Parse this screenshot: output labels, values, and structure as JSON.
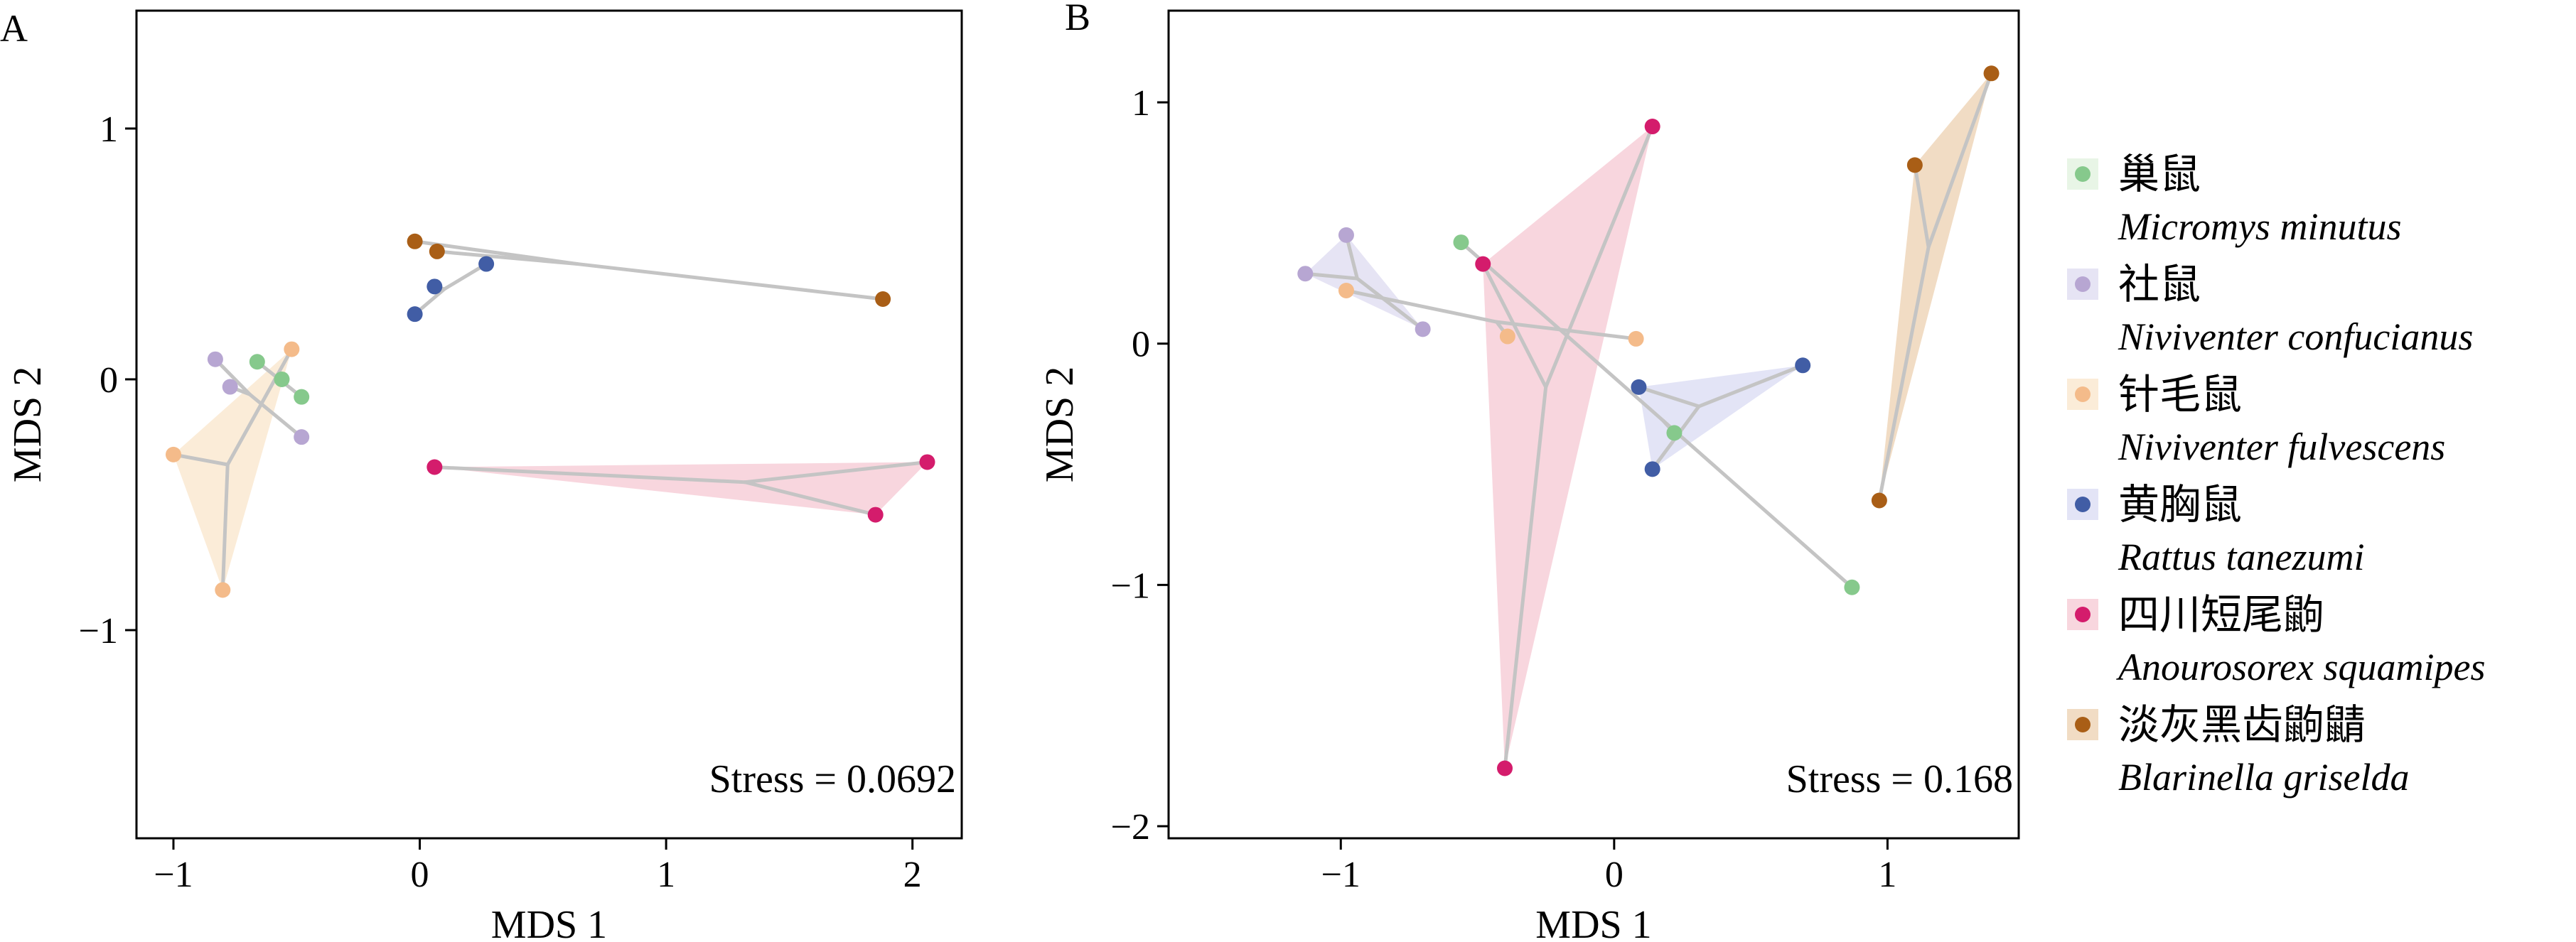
{
  "colors": {
    "species": [
      "#86c98c",
      "#b7a6d2",
      "#f4bb8a",
      "#415da5",
      "#d41c6c",
      "#a95e16"
    ],
    "fills": [
      "#e8f5e6",
      "#e6e4f4",
      "#fbecd8",
      "#e3e4f6",
      "#f8d6de",
      "#f1dcc4"
    ],
    "spoke": "#c4c4c4",
    "axis": "#000000"
  },
  "legend": {
    "items": [
      {
        "zh": "巢鼠",
        "latin": "Micromys minutus"
      },
      {
        "zh": "社鼠",
        "latin": "Niviventer confucianus"
      },
      {
        "zh": "针毛鼠",
        "latin": "Niviventer fulvescens"
      },
      {
        "zh": "黄胸鼠",
        "latin": "Rattus tanezumi"
      },
      {
        "zh": "四川短尾鼩",
        "latin": "Anourosorex squamipes"
      },
      {
        "zh": "淡灰黑齿鼩鼱",
        "latin": "Blarinella griselda"
      }
    ]
  },
  "chart_data": [
    {
      "type": "scatter",
      "panel_label": "A",
      "xlabel": "MDS 1",
      "ylabel": "MDS 2",
      "xlim": [
        -1.15,
        2.2
      ],
      "ylim": [
        -1.83,
        1.47
      ],
      "xticks": [
        -1,
        0,
        1,
        2
      ],
      "yticks": [
        -1,
        0,
        1
      ],
      "xtick_labels": [
        "−1",
        "0",
        "1",
        "2"
      ],
      "ytick_labels": [
        "−1",
        "0",
        "1"
      ],
      "annotation": "Stress = 0.0692",
      "grid": false,
      "series": [
        {
          "name": "巢鼠",
          "x": [
            -0.66,
            -0.56,
            -0.48
          ],
          "y": [
            0.07,
            0.0,
            -0.07
          ],
          "centroid": [
            -0.57,
            0.0
          ]
        },
        {
          "name": "社鼠",
          "x": [
            -0.83,
            -0.77,
            -0.48
          ],
          "y": [
            0.08,
            -0.03,
            -0.23
          ],
          "centroid": [
            -0.69,
            -0.06
          ]
        },
        {
          "name": "针毛鼠",
          "x": [
            -1.0,
            -0.8,
            -0.52
          ],
          "y": [
            -0.3,
            -0.84,
            0.12
          ],
          "centroid": [
            -0.78,
            -0.34
          ]
        },
        {
          "name": "黄胸鼠",
          "x": [
            -0.02,
            0.06,
            0.27
          ],
          "y": [
            0.26,
            0.37,
            0.46
          ],
          "centroid": [
            0.1,
            0.36
          ]
        },
        {
          "name": "四川短尾鼩",
          "x": [
            0.06,
            1.85,
            2.06
          ],
          "y": [
            -0.35,
            -0.54,
            -0.33
          ],
          "centroid": [
            1.32,
            -0.41
          ]
        },
        {
          "name": "淡灰黑齿鼩鼱",
          "x": [
            -0.02,
            0.07,
            1.88
          ],
          "y": [
            0.55,
            0.51,
            0.32
          ],
          "centroid": [
            0.64,
            0.46
          ]
        }
      ],
      "hull_species": [
        2,
        4
      ]
    },
    {
      "type": "scatter",
      "panel_label": "B",
      "xlabel": "MDS 1",
      "ylabel": "MDS 2",
      "xlim": [
        -1.63,
        1.48
      ],
      "ylim": [
        -2.05,
        1.38
      ],
      "xticks": [
        -1,
        0,
        1
      ],
      "yticks": [
        -2,
        -1,
        0,
        1
      ],
      "xtick_labels": [
        "−1",
        "0",
        "1"
      ],
      "ytick_labels": [
        "−2",
        "−1",
        "0",
        "1"
      ],
      "annotation": "Stress = 0.168",
      "grid": false,
      "series": [
        {
          "name": "巢鼠",
          "x": [
            -0.56,
            0.22,
            0.87
          ],
          "y": [
            0.42,
            -0.37,
            -1.01
          ],
          "centroid": [
            0.18,
            -0.32
          ]
        },
        {
          "name": "社鼠",
          "x": [
            -1.13,
            -0.98,
            -0.7
          ],
          "y": [
            0.29,
            0.45,
            0.06
          ],
          "centroid": [
            -0.94,
            0.27
          ]
        },
        {
          "name": "针毛鼠",
          "x": [
            -0.98,
            -0.39,
            0.08
          ],
          "y": [
            0.22,
            0.03,
            0.02
          ],
          "centroid": [
            -0.43,
            0.09
          ]
        },
        {
          "name": "黄胸鼠",
          "x": [
            0.09,
            0.14,
            0.69
          ],
          "y": [
            -0.18,
            -0.52,
            -0.09
          ],
          "centroid": [
            0.31,
            -0.26
          ]
        },
        {
          "name": "四川短尾鼩",
          "x": [
            -0.48,
            -0.4,
            0.14
          ],
          "y": [
            0.33,
            -1.76,
            0.9
          ],
          "centroid": [
            -0.25,
            -0.18
          ]
        },
        {
          "name": "淡灰黑齿鼩鼱",
          "x": [
            0.97,
            1.1,
            1.38
          ],
          "y": [
            -0.65,
            0.74,
            1.12
          ],
          "centroid": [
            1.15,
            0.4
          ]
        }
      ],
      "hull_species": [
        1,
        3,
        4,
        5
      ]
    }
  ]
}
